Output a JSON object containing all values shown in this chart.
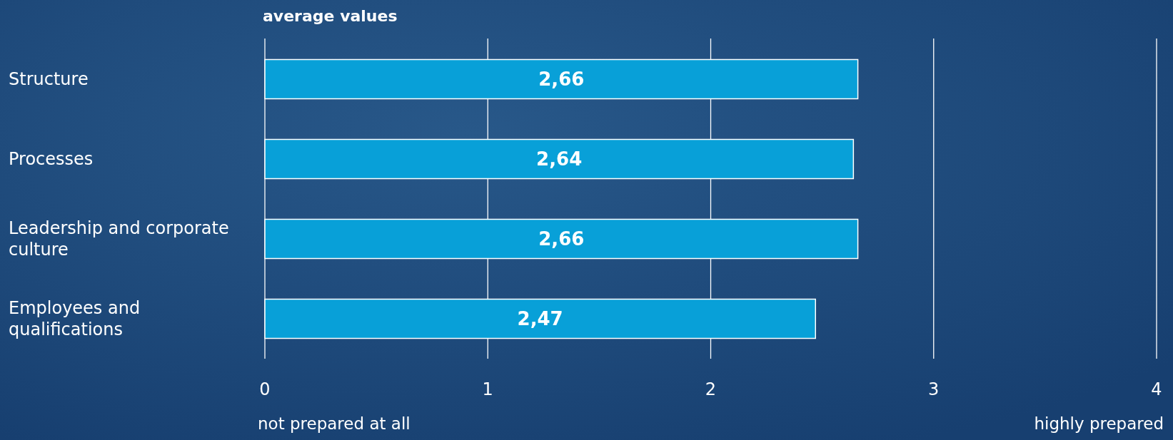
{
  "chart_data": {
    "type": "bar",
    "orientation": "horizontal",
    "title": "average values",
    "categories": [
      "Structure",
      "Processes",
      "Leadership and corporate culture",
      "Employees and qualifications"
    ],
    "values": [
      2.66,
      2.64,
      2.66,
      2.47
    ],
    "color": "#08a0d8",
    "value_labels": [
      "2,66",
      "2,64",
      "2,66",
      "2,47"
    ],
    "xlim": [
      0,
      4
    ],
    "xticks": [
      0,
      1,
      2,
      3,
      4
    ],
    "grid": "x",
    "annotations": [
      "not prepared at all",
      "highly prepared"
    ]
  }
}
